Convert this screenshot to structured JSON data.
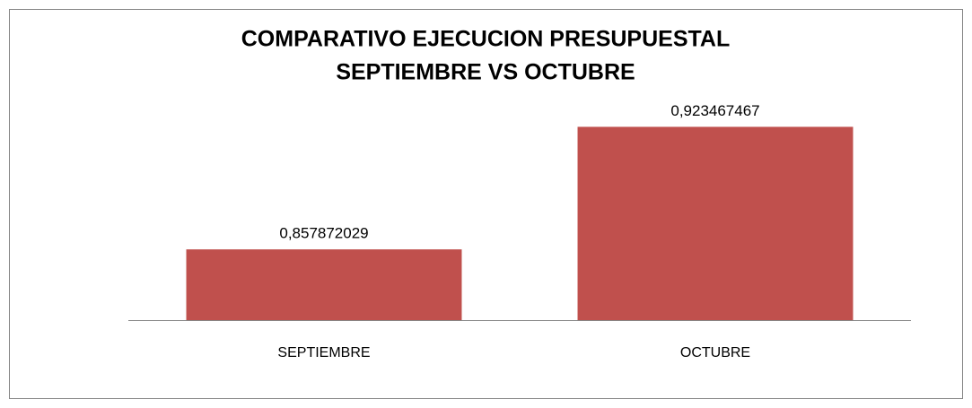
{
  "chart_data": {
    "type": "bar",
    "title": [
      "COMPARATIVO EJECUCION PRESUPUESTAL",
      "SEPTIEMBRE VS OCTUBRE"
    ],
    "categories": [
      "SEPTIEMBRE",
      "OCTUBRE"
    ],
    "values": [
      0.857872029,
      0.923467467
    ],
    "value_labels": [
      "0,857872029",
      "0,923467467"
    ],
    "color": "#c0504d",
    "ylim": [
      0.82,
      0.94
    ]
  }
}
